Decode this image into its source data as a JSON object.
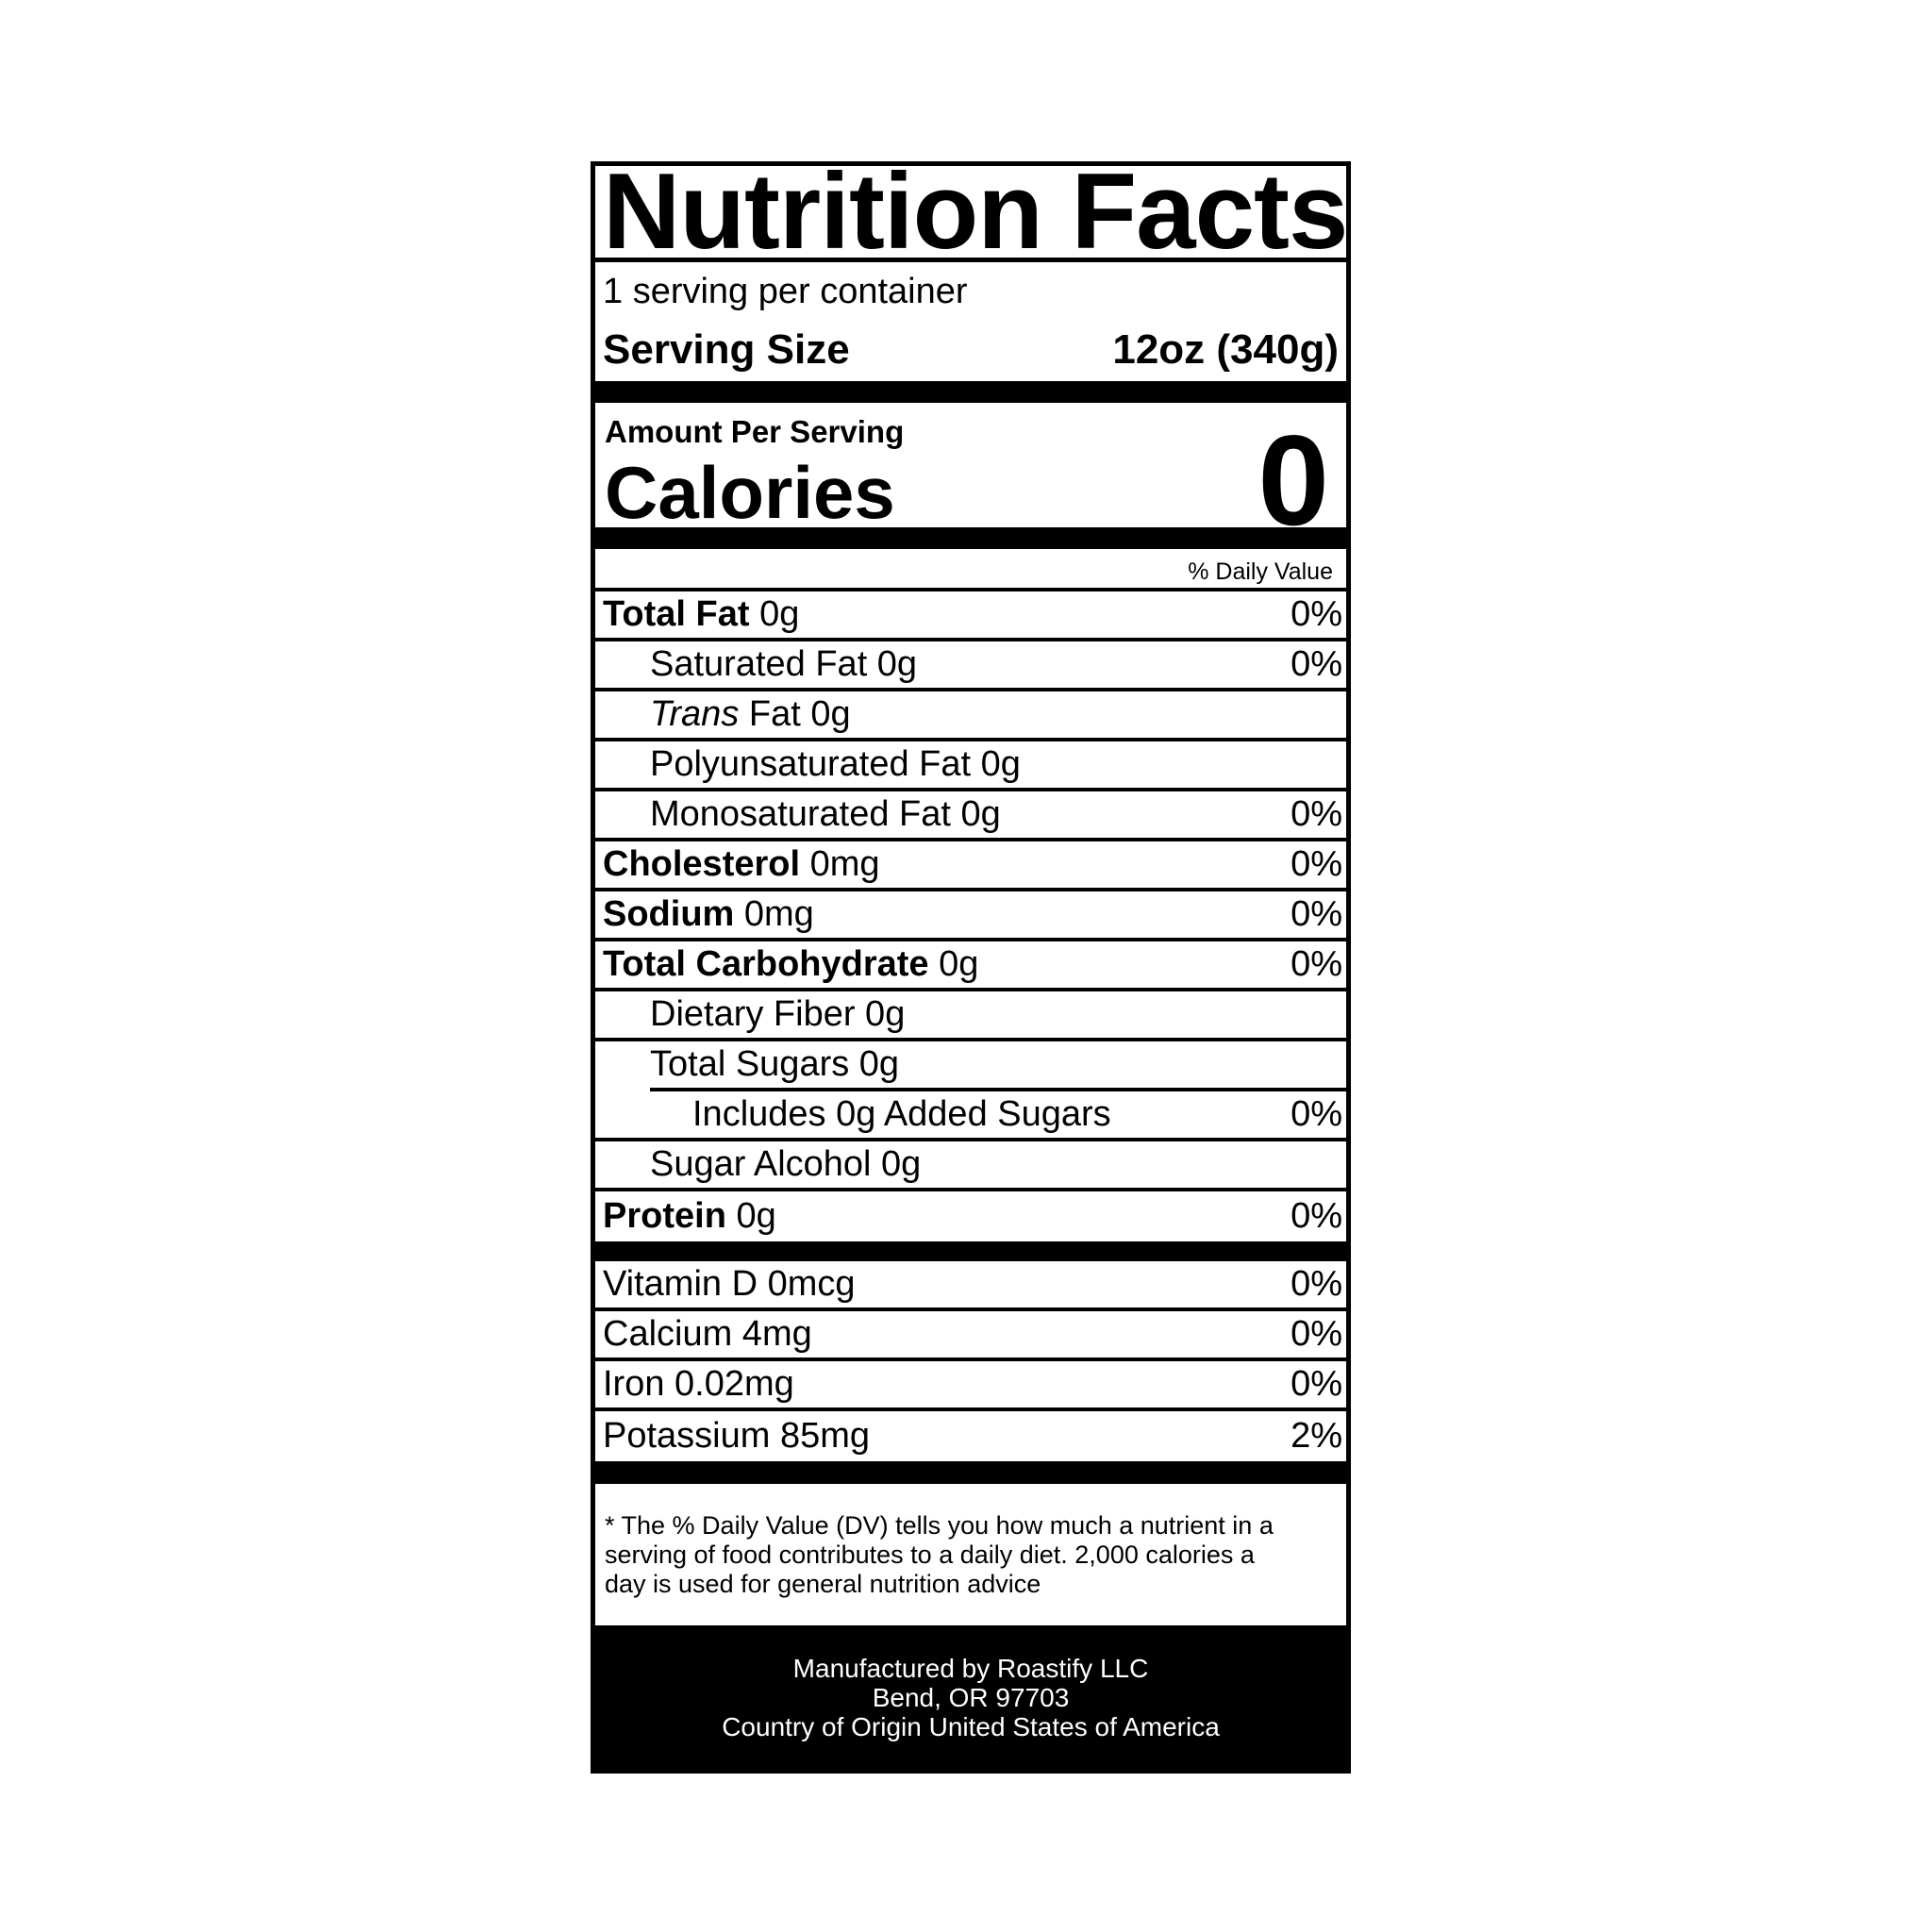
{
  "title": "Nutrition Facts",
  "servings_per_container": "1 serving per container",
  "serving_size": {
    "label": "Serving Size",
    "value": "12oz (340g)"
  },
  "amount_per_serving": "Amount Per Serving",
  "calories": {
    "label": "Calories",
    "value": "0"
  },
  "daily_value_header": "% Daily Value",
  "nutrients": [
    {
      "bold": "Total Fat",
      "text": " 0g",
      "dv": "0%",
      "indent": 0
    },
    {
      "text": "Saturated Fat 0g",
      "dv": "0%",
      "indent": 1
    },
    {
      "italic": "Trans",
      "text": " Fat 0g",
      "dv": "",
      "indent": 1
    },
    {
      "text": "Polyunsaturated Fat 0g",
      "dv": "",
      "indent": 1
    },
    {
      "text": "Monosaturated Fat 0g",
      "dv": "0%",
      "indent": 1
    },
    {
      "bold": "Cholesterol",
      "text": " 0mg",
      "dv": "0%",
      "indent": 0
    },
    {
      "bold": "Sodium",
      "text": " 0mg",
      "dv": "0%",
      "indent": 0
    },
    {
      "bold": "Total Carbohydrate",
      "text": " 0g",
      "dv": "0%",
      "indent": 0
    },
    {
      "text": "Dietary Fiber 0g",
      "dv": "",
      "indent": 1
    },
    {
      "text": "Total Sugars 0g",
      "dv": "",
      "indent": 1,
      "underline_partial": true
    },
    {
      "text": "Includes 0g Added Sugars",
      "dv": "0%",
      "indent": 2
    },
    {
      "text": "Sugar Alcohol 0g",
      "dv": "",
      "indent": 1
    },
    {
      "bold": "Protein",
      "text": " 0g",
      "dv": "0%",
      "indent": 0
    }
  ],
  "vitamins": [
    {
      "text": "Vitamin D 0mcg",
      "dv": "0%"
    },
    {
      "text": "Calcium 4mg",
      "dv": "0%"
    },
    {
      "text": "Iron 0.02mg",
      "dv": "0%"
    },
    {
      "text": "Potassium 85mg",
      "dv": "2%"
    }
  ],
  "footnote": "* The % Daily Value (DV) tells you how much a nutrient in a serving of food contributes to a daily diet. 2,000 calories a day is used for general nutrition advice",
  "manufacturer": {
    "line1": "Manufactured by Roastify LLC",
    "line2": "Bend, OR 97703",
    "line3": "Country of Origin United States of America"
  }
}
